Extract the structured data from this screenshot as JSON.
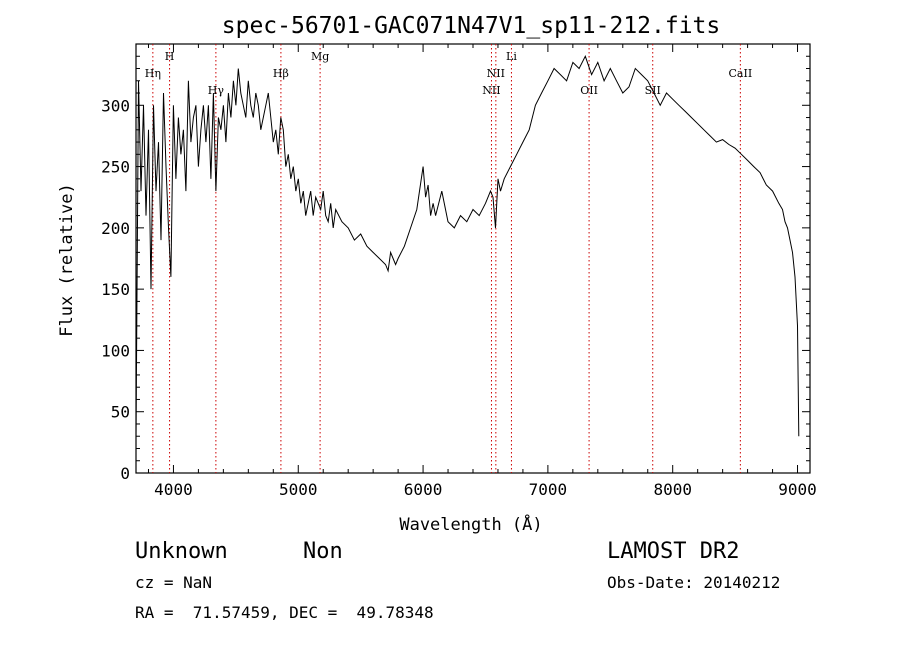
{
  "chart_data": {
    "type": "line",
    "title": "spec-56701-GAC071N47V1_sp11-212.fits",
    "xlabel": "Wavelength (Å)",
    "ylabel": "Flux (relative)",
    "xlim": [
      3700,
      9100
    ],
    "ylim": [
      0,
      350
    ],
    "xticks": [
      4000,
      5000,
      6000,
      7000,
      8000,
      9000
    ],
    "yticks": [
      0,
      50,
      100,
      150,
      200,
      250,
      300
    ],
    "grid": false,
    "line_color": "#000000",
    "marker_color": "#cc0000",
    "series": [
      {
        "x": [
          3700,
          3720,
          3740,
          3760,
          3780,
          3800,
          3820,
          3840,
          3860,
          3880,
          3900,
          3920,
          3940,
          3960,
          3980,
          4000,
          4020,
          4040,
          4060,
          4080,
          4100,
          4120,
          4140,
          4160,
          4180,
          4200,
          4220,
          4240,
          4260,
          4280,
          4300,
          4320,
          4340,
          4360,
          4380,
          4400,
          4420,
          4440,
          4460,
          4480,
          4500,
          4520,
          4540,
          4560,
          4580,
          4600,
          4620,
          4640,
          4660,
          4680,
          4700,
          4720,
          4740,
          4760,
          4780,
          4800,
          4820,
          4840,
          4860,
          4880,
          4900,
          4920,
          4940,
          4960,
          4980,
          5000,
          5020,
          5040,
          5060,
          5080,
          5100,
          5120,
          5140,
          5160,
          5180,
          5200,
          5220,
          5240,
          5260,
          5280,
          5300,
          5350,
          5400,
          5450,
          5500,
          5550,
          5600,
          5650,
          5700,
          5720,
          5740,
          5760,
          5780,
          5800,
          5850,
          5900,
          5950,
          6000,
          6020,
          6040,
          6060,
          6080,
          6100,
          6150,
          6200,
          6250,
          6300,
          6350,
          6400,
          6450,
          6500,
          6540,
          6560,
          6580,
          6600,
          6620,
          6650,
          6700,
          6750,
          6800,
          6850,
          6900,
          6950,
          7000,
          7050,
          7100,
          7150,
          7200,
          7250,
          7300,
          7350,
          7400,
          7450,
          7500,
          7550,
          7600,
          7650,
          7700,
          7750,
          7800,
          7850,
          7900,
          7950,
          8000,
          8050,
          8100,
          8150,
          8200,
          8250,
          8300,
          8350,
          8400,
          8450,
          8500,
          8550,
          8600,
          8650,
          8700,
          8750,
          8800,
          8850,
          8880,
          8900,
          8920,
          8940,
          8960,
          8980,
          9000,
          9010
        ],
        "y": [
          30,
          320,
          230,
          300,
          210,
          280,
          150,
          300,
          230,
          270,
          190,
          310,
          250,
          200,
          160,
          300,
          240,
          290,
          260,
          280,
          230,
          320,
          270,
          290,
          300,
          250,
          280,
          300,
          270,
          300,
          240,
          310,
          230,
          290,
          280,
          300,
          270,
          310,
          290,
          320,
          300,
          330,
          310,
          300,
          290,
          320,
          300,
          290,
          310,
          300,
          280,
          290,
          300,
          310,
          290,
          270,
          280,
          260,
          290,
          280,
          250,
          260,
          240,
          250,
          230,
          240,
          220,
          230,
          210,
          220,
          230,
          210,
          225,
          220,
          215,
          230,
          210,
          205,
          220,
          200,
          215,
          205,
          200,
          190,
          195,
          185,
          180,
          175,
          170,
          165,
          180,
          175,
          170,
          175,
          185,
          200,
          215,
          250,
          225,
          235,
          210,
          220,
          210,
          230,
          205,
          200,
          210,
          205,
          215,
          210,
          220,
          230,
          225,
          200,
          240,
          230,
          240,
          250,
          260,
          270,
          280,
          300,
          310,
          320,
          330,
          325,
          320,
          335,
          330,
          340,
          325,
          335,
          320,
          330,
          320,
          310,
          315,
          330,
          325,
          320,
          310,
          300,
          310,
          305,
          300,
          295,
          290,
          285,
          280,
          275,
          270,
          272,
          268,
          265,
          260,
          255,
          250,
          245,
          235,
          230,
          220,
          215,
          205,
          200,
          190,
          180,
          160,
          120,
          30
        ]
      }
    ],
    "line_markers": [
      {
        "label": "Hη",
        "x": 3835,
        "row": 1
      },
      {
        "label": "H",
        "x": 3969,
        "row": 0
      },
      {
        "label": "Hγ",
        "x": 4340,
        "row": 2
      },
      {
        "label": "Hβ",
        "x": 4861,
        "row": 1
      },
      {
        "label": "Mg",
        "x": 5175,
        "row": 0
      },
      {
        "label": "NII",
        "x": 6548,
        "row": 2
      },
      {
        "label": "NII",
        "x": 6583,
        "row": 1
      },
      {
        "label": "Li",
        "x": 6708,
        "row": 0
      },
      {
        "label": "OII",
        "x": 7330,
        "row": 2
      },
      {
        "label": "SII",
        "x": 7840,
        "row": 2
      },
      {
        "label": "CaII",
        "x": 8542,
        "row": 1
      }
    ]
  },
  "info": {
    "class_label": "Unknown",
    "subclass_label": "Non",
    "survey_label": "LAMOST DR2",
    "cz_text": "cz = NaN",
    "obs_date_text": "Obs-Date: 20140212",
    "radec_text": "RA =  71.57459, DEC =  49.78348"
  }
}
